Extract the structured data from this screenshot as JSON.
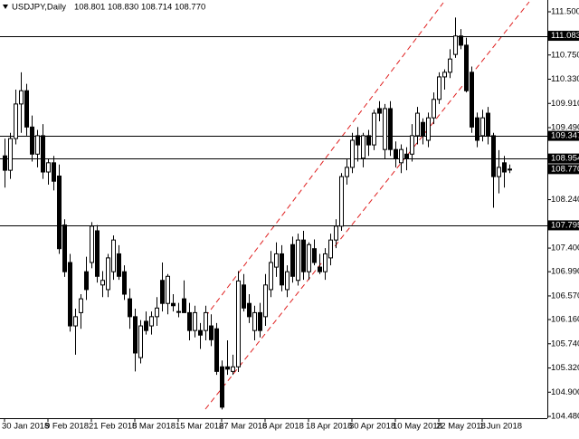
{
  "chart_data": {
    "type": "candlestick",
    "title": "USDJPY,Daily",
    "subtitle": "108.801 108.830 108.714 108.770",
    "bull_color": "#ffffff",
    "bear_color": "#000000",
    "line_color": "#000000",
    "ylim": [
      104.449,
      111.704
    ],
    "yticks": [
      {
        "value": 111.5,
        "label": "111.500"
      },
      {
        "value": 110.75,
        "label": "110.750"
      },
      {
        "value": 110.33,
        "label": "110.330"
      },
      {
        "value": 109.91,
        "label": "109.910"
      },
      {
        "value": 109.49,
        "label": "109.490"
      },
      {
        "value": 108.24,
        "label": "108.240"
      },
      {
        "value": 107.4,
        "label": "107.400"
      },
      {
        "value": 106.99,
        "label": "106.990"
      },
      {
        "value": 106.57,
        "label": "106.570"
      },
      {
        "value": 106.16,
        "label": "106.160"
      },
      {
        "value": 105.74,
        "label": "105.740"
      },
      {
        "value": 105.32,
        "label": "105.320"
      },
      {
        "value": 104.9,
        "label": "104.900"
      },
      {
        "value": 104.48,
        "label": "104.480"
      }
    ],
    "hlines": [
      {
        "value": 111.083,
        "label": "111.083"
      },
      {
        "value": 109.347,
        "label": "109.347"
      },
      {
        "value": 108.954,
        "label": "108.954"
      },
      {
        "value": 107.795,
        "label": "107.795"
      }
    ],
    "last": {
      "value": 108.77,
      "label": "108.770"
    },
    "categories": [
      "30 Jan 2018",
      null,
      null,
      null,
      null,
      null,
      null,
      null,
      "9 Feb 2018",
      null,
      null,
      null,
      null,
      null,
      null,
      null,
      "21 Feb 2018",
      null,
      null,
      null,
      null,
      null,
      null,
      null,
      "5 Mar 2018",
      null,
      null,
      null,
      null,
      null,
      null,
      null,
      "15 Mar 2018",
      null,
      null,
      null,
      null,
      null,
      null,
      null,
      "27 Mar 2018",
      null,
      null,
      null,
      null,
      null,
      null,
      null,
      "6 Apr 2018",
      null,
      null,
      null,
      null,
      null,
      null,
      null,
      "18 Apr 2018",
      null,
      null,
      null,
      null,
      null,
      null,
      null,
      "30 Apr 2018",
      null,
      null,
      null,
      null,
      null,
      null,
      null,
      "10 May 2018",
      null,
      null,
      null,
      null,
      null,
      null,
      null,
      "22 May 2018",
      null,
      null,
      null,
      null,
      null,
      null,
      null,
      "1 Jun 2018",
      null,
      null,
      null,
      null,
      null
    ],
    "open": [
      109.0,
      108.75,
      109.3,
      109.9,
      110.13,
      109.5,
      109.03,
      109.35,
      108.72,
      108.88,
      108.65,
      107.8,
      107.15,
      106.05,
      106.28,
      106.99,
      107.15,
      107.7,
      106.76,
      106.68,
      106.99,
      107.3,
      106.99,
      106.52,
      106.21,
      105.5,
      106.13,
      106.05,
      106.21,
      106.84,
      106.44,
      106.44,
      106.3,
      106.52,
      106.28,
      105.97,
      105.97,
      105.97,
      106.05,
      106.0,
      105.34,
      105.34,
      105.26,
      105.34,
      106.76,
      106.44,
      105.97,
      106.28,
      106.21,
      106.68,
      107.07,
      107.3,
      106.68,
      107.46,
      106.84,
      107.54,
      106.99,
      107.39,
      107.07,
      106.99,
      107.23,
      107.54,
      107.78,
      108.64,
      108.8,
      109.35,
      108.96,
      109.35,
      109.19,
      109.82,
      109.11,
      109.82,
      109.11,
      108.88,
      109.03,
      109.03,
      109.35,
      109.58,
      109.27,
      109.66,
      109.98,
      110.37,
      110.45,
      110.76,
      111.08,
      110.92,
      110.45,
      109.66,
      109.35,
      109.74,
      109.35,
      108.64,
      108.88,
      108.77
    ],
    "high": [
      109.3,
      109.4,
      110.15,
      110.45,
      110.25,
      109.7,
      109.45,
      109.55,
      108.95,
      109.0,
      108.85,
      107.9,
      107.3,
      106.35,
      106.6,
      107.25,
      107.85,
      107.8,
      107.0,
      107.3,
      107.62,
      107.45,
      107.1,
      106.7,
      106.35,
      106.15,
      106.3,
      106.3,
      106.55,
      107.15,
      106.95,
      106.6,
      106.45,
      106.84,
      106.45,
      106.4,
      106.1,
      106.4,
      106.25,
      106.1,
      105.45,
      105.8,
      105.55,
      107.0,
      106.95,
      106.6,
      106.4,
      106.45,
      106.95,
      107.35,
      107.5,
      107.45,
      107.1,
      107.6,
      107.65,
      107.7,
      107.5,
      107.55,
      107.3,
      107.4,
      107.65,
      107.9,
      108.7,
      108.95,
      109.4,
      109.5,
      109.4,
      109.45,
      109.8,
      109.95,
      109.9,
      109.95,
      109.25,
      109.2,
      109.15,
      109.55,
      109.85,
      109.65,
      109.75,
      110.1,
      110.45,
      110.5,
      110.85,
      111.4,
      111.2,
      111.05,
      110.55,
      109.75,
      109.8,
      109.85,
      109.4,
      109.1,
      109.0,
      108.85
    ],
    "low": [
      108.45,
      108.6,
      109.2,
      109.4,
      109.35,
      108.9,
      108.8,
      108.6,
      108.5,
      108.4,
      107.3,
      106.9,
      105.95,
      105.55,
      106.0,
      106.5,
      107.05,
      106.8,
      106.55,
      106.55,
      106.85,
      106.85,
      106.5,
      106.0,
      105.26,
      105.4,
      105.9,
      105.9,
      106.05,
      106.3,
      106.25,
      106.3,
      106.2,
      106.35,
      105.8,
      105.85,
      105.65,
      105.8,
      105.7,
      105.2,
      104.6,
      105.2,
      105.2,
      105.25,
      106.3,
      106.1,
      105.8,
      105.85,
      106.05,
      106.55,
      106.9,
      106.65,
      106.55,
      106.8,
      106.75,
      106.85,
      106.85,
      107.1,
      106.95,
      106.85,
      107.1,
      107.4,
      107.7,
      108.5,
      108.7,
      108.9,
      108.8,
      109.0,
      109.1,
      109.6,
      108.95,
      109.0,
      108.8,
      108.7,
      108.75,
      108.9,
      109.2,
      109.2,
      109.15,
      109.55,
      109.9,
      110.15,
      110.35,
      110.7,
      110.85,
      110.1,
      109.4,
      109.15,
      109.25,
      109.2,
      108.1,
      108.35,
      108.45,
      108.7
    ],
    "close": [
      108.75,
      109.3,
      109.9,
      110.13,
      109.5,
      109.03,
      109.35,
      108.72,
      108.88,
      108.56,
      107.39,
      106.99,
      106.05,
      106.21,
      106.52,
      106.68,
      107.78,
      106.91,
      106.84,
      107.23,
      107.54,
      106.91,
      106.6,
      106.21,
      105.58,
      106.05,
      105.97,
      106.21,
      106.36,
      106.44,
      106.91,
      106.4,
      106.3,
      106.28,
      105.97,
      106.28,
      105.89,
      106.28,
      105.81,
      105.26,
      104.64,
      105.3,
      105.34,
      106.83,
      106.36,
      106.21,
      106.28,
      105.97,
      106.76,
      107.15,
      107.3,
      106.76,
      106.99,
      106.91,
      107.54,
      106.99,
      107.46,
      107.15,
      106.99,
      107.3,
      107.54,
      107.78,
      108.64,
      108.8,
      109.27,
      109.19,
      109.35,
      109.19,
      109.74,
      109.74,
      109.82,
      109.11,
      108.96,
      109.11,
      108.96,
      109.35,
      109.74,
      109.35,
      109.66,
      109.98,
      110.37,
      110.45,
      110.68,
      111.08,
      110.92,
      110.13,
      109.5,
      109.27,
      109.66,
      109.35,
      108.64,
      108.8,
      108.72,
      108.77
    ]
  }
}
